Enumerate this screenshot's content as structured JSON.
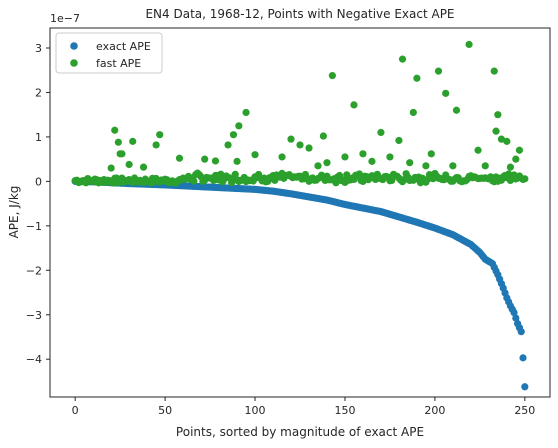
{
  "chart_data": {
    "type": "scatter",
    "title": "EN4 Data, 1968-12, Points with Negative Exact APE",
    "xlabel": "Points, sorted by magnitude of exact APE",
    "ylabel": "APE, J/kg",
    "offset_text": "1e−7",
    "xlim": [
      -14,
      264
    ],
    "ylim": [
      -4.85,
      3.45
    ],
    "x_ticks": [
      0,
      50,
      100,
      150,
      200,
      250
    ],
    "y_ticks": [
      -4,
      -3,
      -2,
      -1,
      0,
      1,
      2,
      3
    ],
    "grid": false,
    "legend_position": "upper-left",
    "n_points": 250,
    "series": [
      {
        "name": "exact APE",
        "color": "#1f77b4",
        "anchors": [
          [
            0,
            0.0
          ],
          [
            10,
            -0.01
          ],
          [
            30,
            -0.05
          ],
          [
            50,
            -0.08
          ],
          [
            70,
            -0.12
          ],
          [
            90,
            -0.16
          ],
          [
            100,
            -0.18
          ],
          [
            110,
            -0.22
          ],
          [
            120,
            -0.28
          ],
          [
            130,
            -0.35
          ],
          [
            140,
            -0.42
          ],
          [
            150,
            -0.52
          ],
          [
            160,
            -0.6
          ],
          [
            170,
            -0.68
          ],
          [
            180,
            -0.8
          ],
          [
            190,
            -0.92
          ],
          [
            200,
            -1.05
          ],
          [
            210,
            -1.2
          ],
          [
            220,
            -1.42
          ],
          [
            225,
            -1.6
          ],
          [
            228,
            -1.75
          ],
          [
            232,
            -1.85
          ],
          [
            235,
            -2.1
          ],
          [
            238,
            -2.4
          ],
          [
            240,
            -2.62
          ],
          [
            242,
            -2.8
          ],
          [
            244,
            -2.95
          ],
          [
            246,
            -3.2
          ],
          [
            248,
            -3.38
          ],
          [
            249,
            -3.97
          ],
          [
            250,
            -4.62
          ]
        ]
      },
      {
        "name": "fast APE",
        "color": "#2ca02c",
        "points": [
          [
            20,
            0.3
          ],
          [
            22,
            1.15
          ],
          [
            24,
            0.88
          ],
          [
            25,
            0.62
          ],
          [
            26,
            0.62
          ],
          [
            30,
            0.38
          ],
          [
            32,
            0.9
          ],
          [
            38,
            0.32
          ],
          [
            45,
            0.82
          ],
          [
            47,
            1.05
          ],
          [
            58,
            0.52
          ],
          [
            72,
            0.5
          ],
          [
            78,
            0.46
          ],
          [
            85,
            0.82
          ],
          [
            88,
            1.05
          ],
          [
            90,
            0.45
          ],
          [
            91,
            1.25
          ],
          [
            95,
            1.55
          ],
          [
            100,
            0.6
          ],
          [
            115,
            0.55
          ],
          [
            120,
            0.95
          ],
          [
            125,
            0.82
          ],
          [
            130,
            0.75
          ],
          [
            135,
            0.35
          ],
          [
            138,
            1.02
          ],
          [
            140,
            0.42
          ],
          [
            143,
            2.38
          ],
          [
            150,
            0.55
          ],
          [
            155,
            1.72
          ],
          [
            160,
            0.62
          ],
          [
            165,
            0.45
          ],
          [
            170,
            1.1
          ],
          [
            175,
            0.55
          ],
          [
            180,
            0.92
          ],
          [
            182,
            2.75
          ],
          [
            186,
            0.42
          ],
          [
            188,
            1.55
          ],
          [
            190,
            2.32
          ],
          [
            195,
            0.35
          ],
          [
            198,
            0.62
          ],
          [
            202,
            2.48
          ],
          [
            206,
            1.98
          ],
          [
            210,
            0.35
          ],
          [
            212,
            1.6
          ],
          [
            219,
            3.08
          ],
          [
            224,
            0.7
          ],
          [
            228,
            0.35
          ],
          [
            233,
            2.48
          ],
          [
            234,
            1.13
          ],
          [
            235,
            1.5
          ],
          [
            237,
            0.95
          ],
          [
            240,
            0.9
          ],
          [
            242,
            0.32
          ],
          [
            245,
            0.5
          ],
          [
            247,
            0.7
          ]
        ]
      }
    ]
  }
}
